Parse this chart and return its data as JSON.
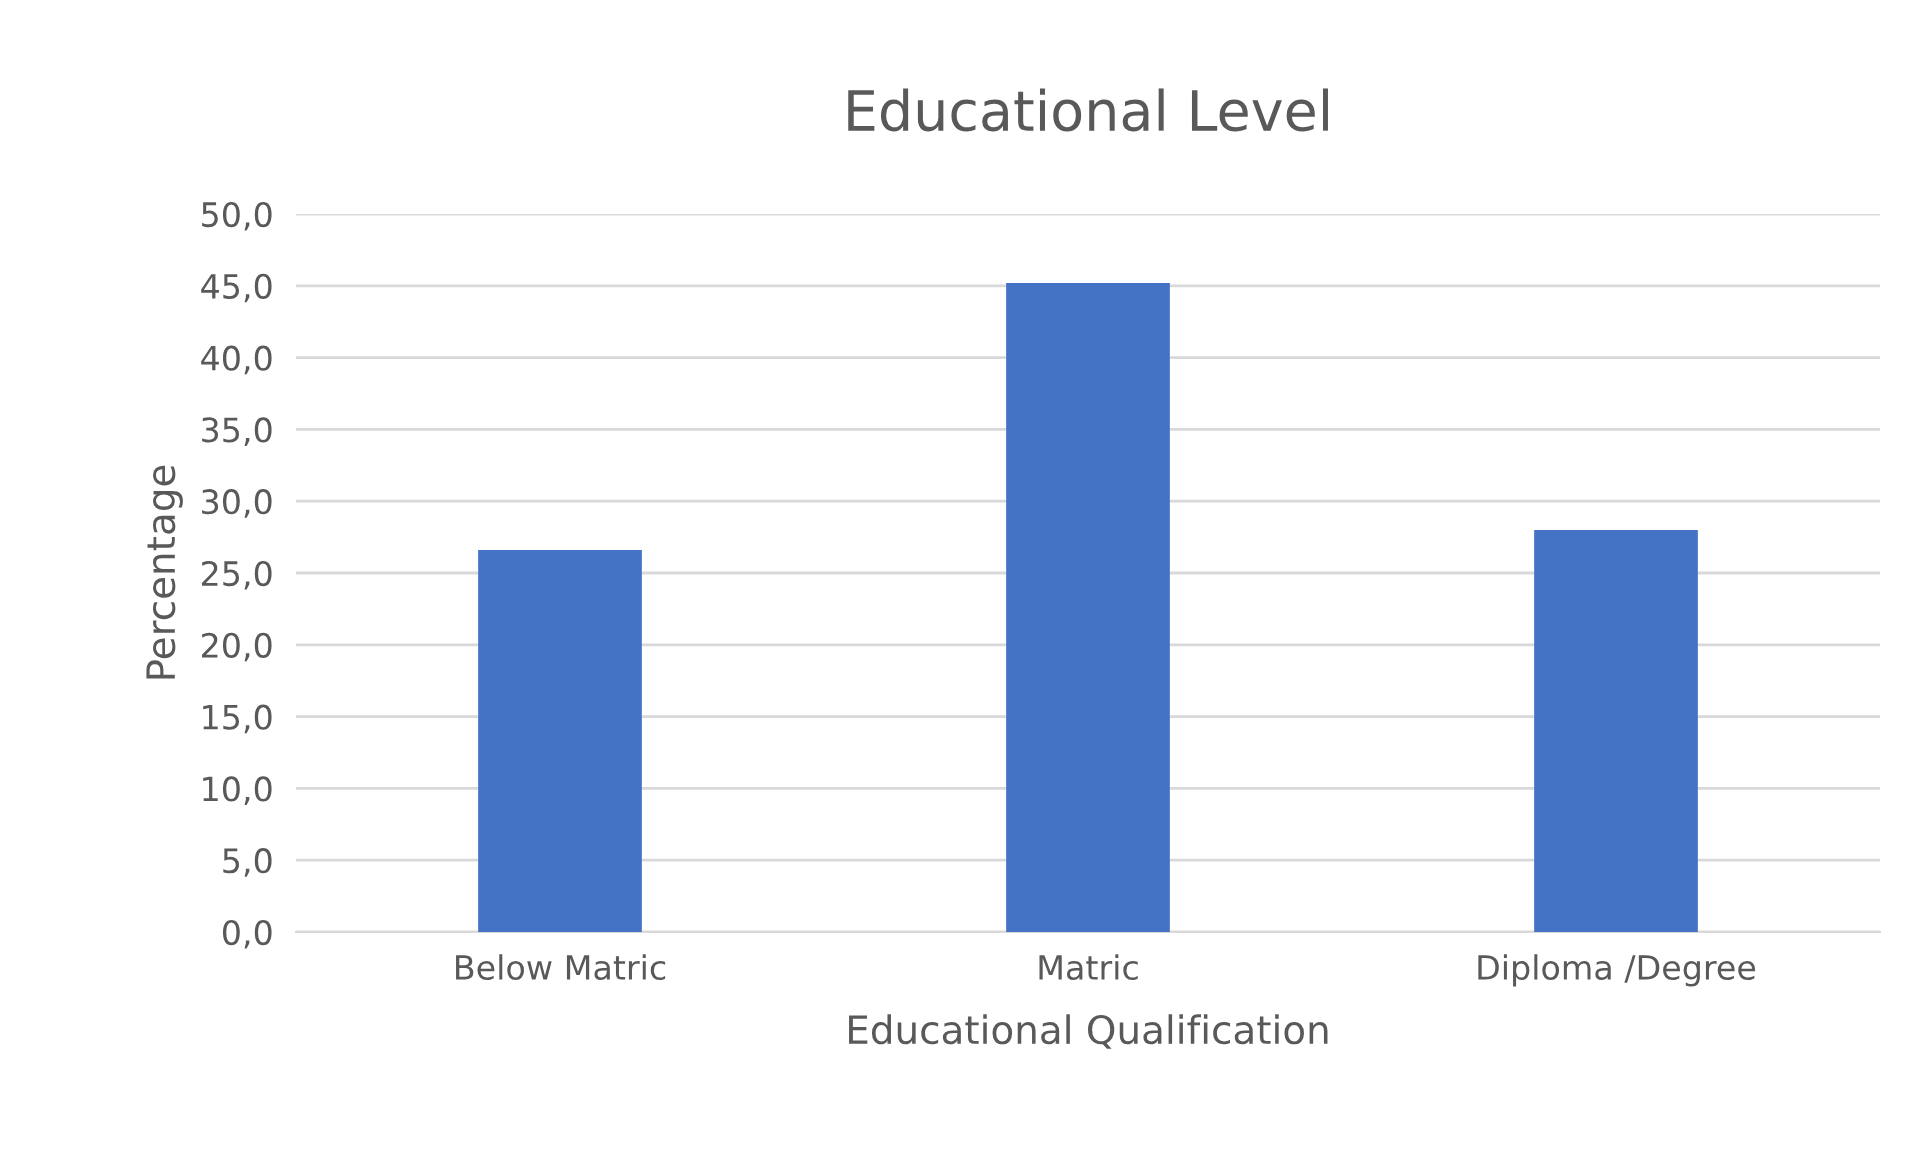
{
  "chart_data": {
    "type": "bar",
    "title": "Educational Level",
    "xlabel": "Educational Qualification",
    "ylabel": "Percentage",
    "categories": [
      "Below Matric",
      "Matric",
      "Diploma /Degree"
    ],
    "values": [
      26.6,
      45.2,
      28.0
    ],
    "color": "#4472c4",
    "ylim": [
      0,
      50
    ],
    "yticks": [
      {
        "value": 0,
        "label": "0,0"
      },
      {
        "value": 5,
        "label": "5,0"
      },
      {
        "value": 10,
        "label": "10,0"
      },
      {
        "value": 15,
        "label": "15,0"
      },
      {
        "value": 20,
        "label": "20,0"
      },
      {
        "value": 25,
        "label": "25,0"
      },
      {
        "value": 30,
        "label": "30,0"
      },
      {
        "value": 35,
        "label": "35,0"
      },
      {
        "value": 40,
        "label": "40,0"
      },
      {
        "value": 45,
        "label": "45,0"
      },
      {
        "value": 50,
        "label": "50,0"
      }
    ],
    "grid": "y",
    "legend": false
  }
}
